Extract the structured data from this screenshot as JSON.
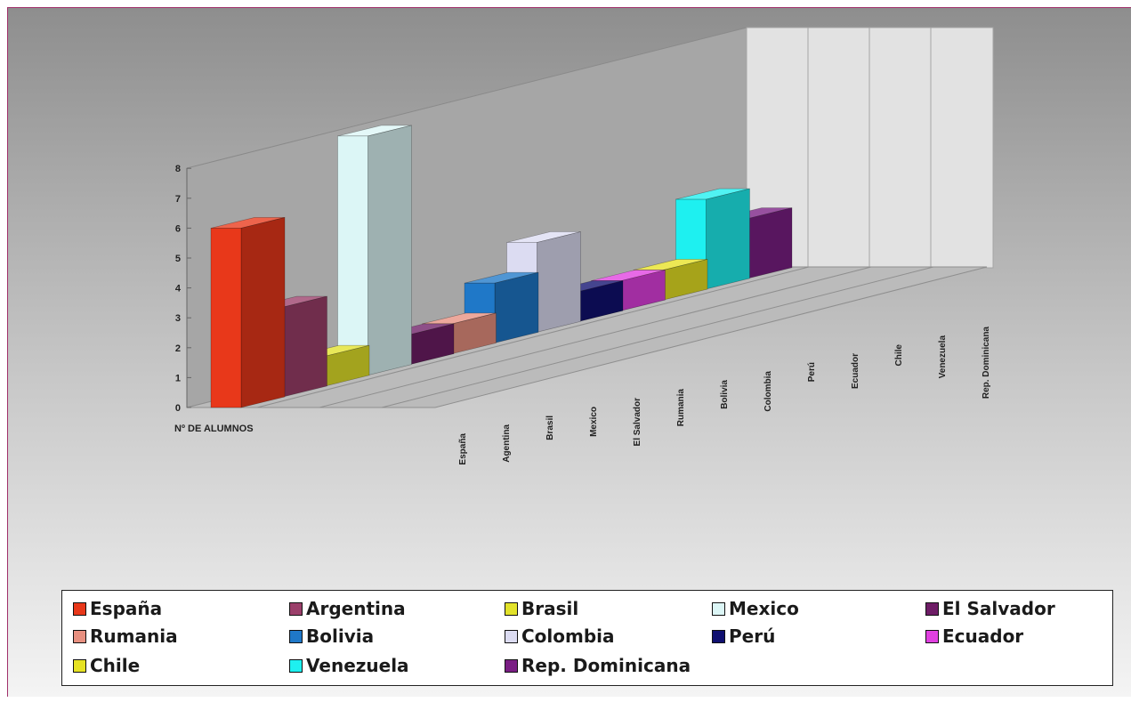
{
  "chart_data": {
    "type": "bar",
    "subtype": "3d-column",
    "title": "",
    "xlabel": "",
    "ylabel": "",
    "ylim": [
      0,
      8
    ],
    "yticks": [
      "0",
      "1",
      "2",
      "3",
      "4",
      "5",
      "6",
      "7",
      "8"
    ],
    "categories": [
      "Nº DE ALUMNOS"
    ],
    "depth_labels": [
      "España",
      "Agentina",
      "Brasil",
      "Mexico",
      "El Salvador",
      "Rumania",
      "Bolivia",
      "Colombia",
      "Perú",
      "Ecuador",
      "Chile",
      "Venezuela",
      "Rep. Dominicana"
    ],
    "series": [
      {
        "name": "España",
        "values": [
          6
        ],
        "color": "#e8381a"
      },
      {
        "name": "Argentina",
        "values": [
          3
        ],
        "color": "#9b3f6a"
      },
      {
        "name": "Brasil",
        "values": [
          1
        ],
        "color": "#e2e22a"
      },
      {
        "name": "Mexico",
        "values": [
          8
        ],
        "color": "#dcf6f6"
      },
      {
        "name": "El Salvador",
        "values": [
          1
        ],
        "color": "#6e1d66"
      },
      {
        "name": "Rumania",
        "values": [
          1
        ],
        "color": "#e89080"
      },
      {
        "name": "Bolivia",
        "values": [
          2
        ],
        "color": "#1f78c8"
      },
      {
        "name": "Colombia",
        "values": [
          3
        ],
        "color": "#dcdcf2"
      },
      {
        "name": "Perú",
        "values": [
          1
        ],
        "color": "#101070"
      },
      {
        "name": "Ecuador",
        "values": [
          1
        ],
        "color": "#e040e0"
      },
      {
        "name": "Chile",
        "values": [
          1
        ],
        "color": "#e6e224"
      },
      {
        "name": "Venezuela",
        "values": [
          3
        ],
        "color": "#1ef0f0"
      },
      {
        "name": "Rep. Dominicana",
        "values": [
          2
        ],
        "color": "#7a1e84"
      }
    ],
    "grid": false,
    "legend_position": "bottom"
  }
}
